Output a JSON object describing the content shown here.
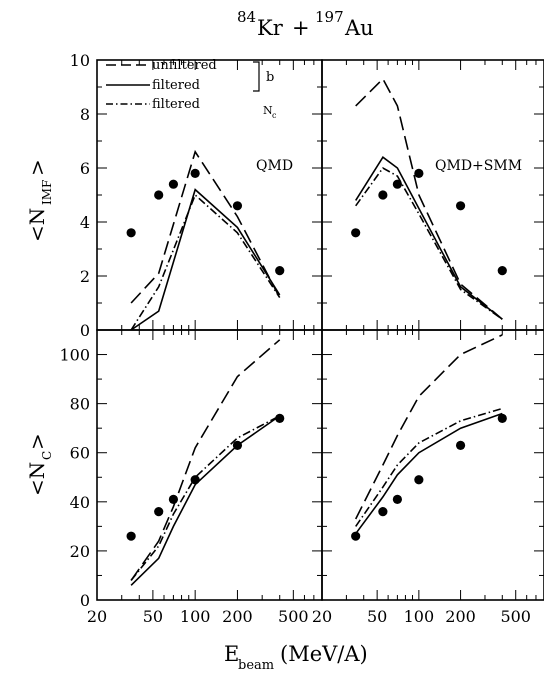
{
  "figure": {
    "title": {
      "a_mass": "84",
      "a_sym": "Kr",
      "plus": "+",
      "b_mass": "197",
      "b_sym": "Au"
    },
    "xlabel": {
      "main": "E",
      "sub": "beam",
      "unit": "(MeV/A)"
    },
    "ylabel_top": {
      "main": "<N",
      "sub": "IMF",
      "close": ">"
    },
    "ylabel_bottom": {
      "main": "<N",
      "sub": "C",
      "close": ">"
    },
    "legend": {
      "items": [
        "unfiltered",
        "filtered",
        "filtered"
      ],
      "brace_label": "b",
      "nc_label": "N",
      "nc_sub": "c"
    },
    "panel_labels": {
      "left": "QMD",
      "right": "QMD+SMM"
    }
  },
  "chart_data": [
    {
      "type": "line",
      "panel": "top-left",
      "x_scale": "log",
      "xlim": [
        20,
        800
      ],
      "ylim": [
        0,
        10
      ],
      "x_ticks": [
        20,
        50,
        100,
        200,
        500
      ],
      "y_ticks": [
        0,
        2,
        4,
        6,
        8,
        10
      ],
      "annotation": "QMD",
      "series": [
        {
          "name": "unfiltered",
          "style": "long-dash",
          "x": [
            35,
            55,
            100,
            200,
            400
          ],
          "y": [
            1.0,
            2.1,
            6.6,
            4.2,
            1.2
          ]
        },
        {
          "name": "filtered",
          "style": "solid",
          "x": [
            35,
            55,
            100,
            200,
            400
          ],
          "y": [
            0.0,
            0.7,
            5.2,
            3.8,
            1.3
          ]
        },
        {
          "name": "filtered",
          "style": "dash-dot",
          "x": [
            35,
            55,
            100,
            200,
            400
          ],
          "y": [
            0.0,
            1.6,
            5.0,
            3.6,
            1.2
          ]
        },
        {
          "style": "points",
          "x": [
            35,
            55,
            70,
            100,
            200,
            400
          ],
          "y": [
            3.6,
            5.0,
            5.4,
            5.8,
            4.6,
            2.2
          ]
        }
      ]
    },
    {
      "type": "line",
      "panel": "top-right",
      "x_scale": "log",
      "xlim": [
        20,
        800
      ],
      "ylim": [
        0,
        10
      ],
      "x_ticks": [
        20,
        50,
        100,
        200,
        500
      ],
      "y_ticks": [
        0,
        2,
        4,
        6,
        8,
        10
      ],
      "annotation": "QMD+SMM",
      "series": [
        {
          "name": "unfiltered",
          "style": "long-dash",
          "x": [
            35,
            55,
            70,
            100,
            200,
            400
          ],
          "y": [
            8.3,
            9.3,
            8.3,
            5.0,
            1.7,
            0.4
          ]
        },
        {
          "name": "filtered",
          "style": "solid",
          "x": [
            35,
            55,
            70,
            100,
            200,
            400
          ],
          "y": [
            4.8,
            6.4,
            6.0,
            4.5,
            1.6,
            0.4
          ]
        },
        {
          "name": "filtered",
          "style": "dash-dot",
          "x": [
            35,
            55,
            70,
            100,
            200,
            400
          ],
          "y": [
            4.6,
            6.0,
            5.7,
            4.3,
            1.5,
            0.4
          ]
        },
        {
          "style": "points",
          "x": [
            35,
            55,
            70,
            100,
            200,
            400
          ],
          "y": [
            3.6,
            5.0,
            5.4,
            5.8,
            4.6,
            2.2
          ]
        }
      ]
    },
    {
      "type": "line",
      "panel": "bottom-left",
      "x_scale": "log",
      "xlim": [
        20,
        800
      ],
      "ylim": [
        0,
        110
      ],
      "x_ticks": [
        20,
        50,
        100,
        200,
        500
      ],
      "y_ticks": [
        0,
        20,
        40,
        60,
        80,
        100
      ],
      "series": [
        {
          "name": "unfiltered",
          "style": "long-dash",
          "x": [
            35,
            55,
            70,
            100,
            200,
            400
          ],
          "y": [
            8,
            24,
            38,
            62,
            91,
            106
          ]
        },
        {
          "name": "filtered",
          "style": "solid",
          "x": [
            35,
            55,
            70,
            100,
            200,
            400
          ],
          "y": [
            6,
            17,
            30,
            47,
            63,
            75
          ]
        },
        {
          "name": "filtered",
          "style": "dash-dot",
          "x": [
            35,
            55,
            70,
            100,
            200,
            400
          ],
          "y": [
            8,
            22,
            35,
            50,
            66,
            75
          ]
        },
        {
          "style": "points",
          "x": [
            35,
            55,
            70,
            100,
            200,
            400
          ],
          "y": [
            26,
            36,
            41,
            49,
            63,
            74
          ]
        }
      ]
    },
    {
      "type": "line",
      "panel": "bottom-right",
      "x_scale": "log",
      "xlim": [
        20,
        800
      ],
      "ylim": [
        0,
        110
      ],
      "x_ticks": [
        20,
        50,
        100,
        200,
        500
      ],
      "y_ticks": [
        0,
        20,
        40,
        60,
        80,
        100
      ],
      "series": [
        {
          "name": "unfiltered",
          "style": "long-dash",
          "x": [
            35,
            55,
            70,
            100,
            200,
            400
          ],
          "y": [
            33,
            55,
            67,
            83,
            100,
            108
          ]
        },
        {
          "name": "filtered",
          "style": "solid",
          "x": [
            35,
            55,
            70,
            100,
            200,
            400
          ],
          "y": [
            27,
            42,
            51,
            60,
            70,
            76
          ]
        },
        {
          "name": "filtered",
          "style": "dash-dot",
          "x": [
            35,
            55,
            70,
            100,
            200,
            400
          ],
          "y": [
            30,
            46,
            55,
            64,
            73,
            78
          ]
        },
        {
          "style": "points",
          "x": [
            35,
            55,
            70,
            100,
            200,
            400
          ],
          "y": [
            26,
            36,
            41,
            49,
            63,
            74
          ]
        }
      ]
    }
  ]
}
